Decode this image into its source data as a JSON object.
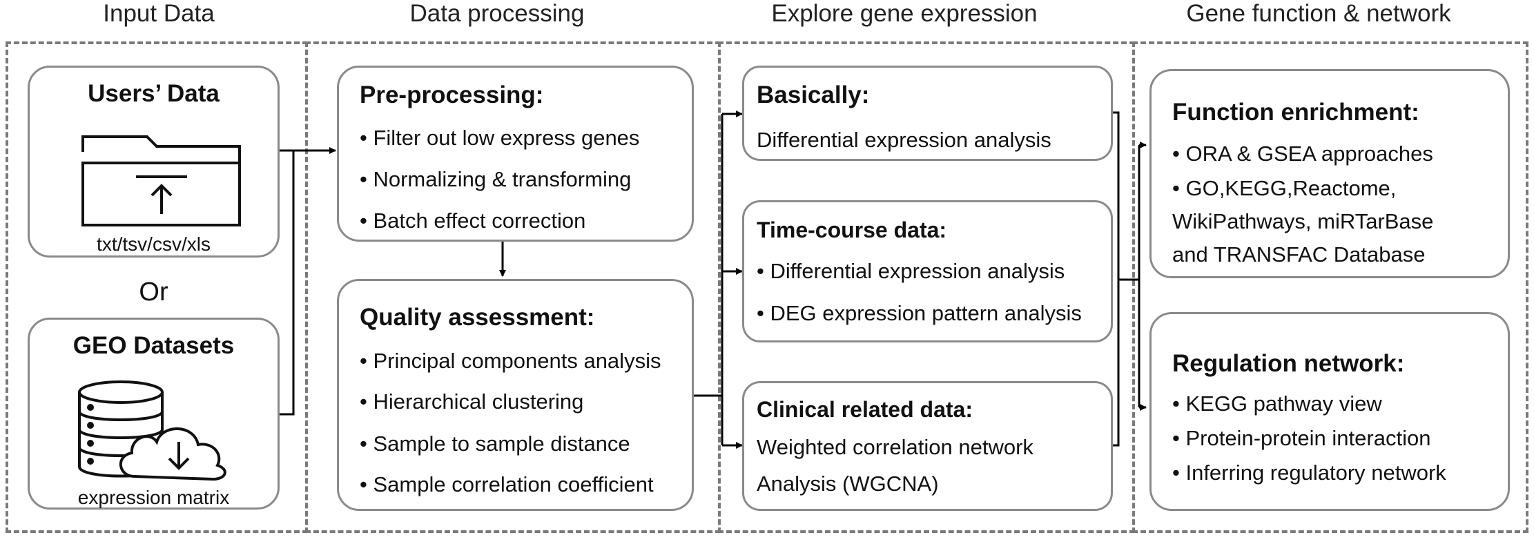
{
  "columns": {
    "input": "Input Data",
    "processing": "Data processing",
    "explore": "Explore gene expression",
    "function": "Gene function & network"
  },
  "input": {
    "users_title": "Users’ Data",
    "users_formats": "txt/tsv/csv/xls",
    "or": "Or",
    "geo_title": "GEO Datasets",
    "geo_caption": "expression matrix"
  },
  "preprocessing": {
    "title": "Pre-processing:",
    "items": [
      "• Filter out low express genes",
      "• Normalizing & transforming",
      "• Batch effect correction"
    ]
  },
  "quality": {
    "title": "Quality assessment:",
    "items": [
      "• Principal components analysis",
      "• Hierarchical clustering",
      "• Sample to sample distance",
      "• Sample correlation coefficient"
    ]
  },
  "basically": {
    "title": "Basically:",
    "text": "Differential expression analysis"
  },
  "timecourse": {
    "title": "Time-course data:",
    "items": [
      "• Differential expression analysis",
      "• DEG expression pattern analysis"
    ]
  },
  "clinical": {
    "title": "Clinical related data:",
    "lines": [
      "Weighted correlation network",
      "Analysis (WGCNA)"
    ]
  },
  "enrichment": {
    "title": "Function enrichment:",
    "lines": [
      "• ORA & GSEA approaches",
      "• GO,KEGG,Reactome,",
      "WikiPathways,   miRTarBase",
      "and TRANSFAC Database"
    ]
  },
  "regulation": {
    "title": "Regulation network:",
    "items": [
      "• KEGG pathway view",
      "• Protein-protein interaction",
      "• Inferring regulatory network"
    ]
  }
}
